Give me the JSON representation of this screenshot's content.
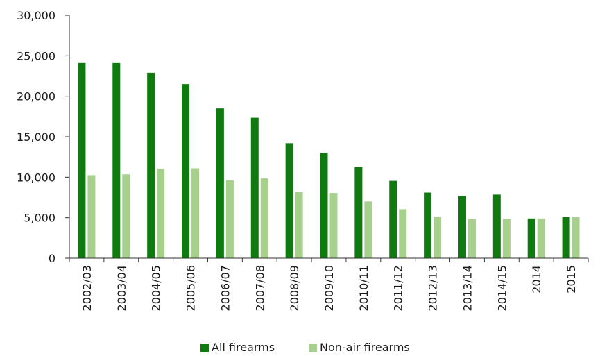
{
  "chart_data": {
    "type": "bar",
    "categories": [
      "2002/03",
      "2003/04",
      "2004/05",
      "2005/06",
      "2006/07",
      "2007/08",
      "2008/09",
      "2009/10",
      "2010/11",
      "2011/12",
      "2012/13",
      "2013/14",
      "2014/15",
      "2014",
      "2015"
    ],
    "series": [
      {
        "name": "All firearms",
        "color": "#0f7a0f",
        "values": [
          24100,
          24100,
          22900,
          21500,
          18500,
          17350,
          14200,
          13000,
          11300,
          9550,
          8100,
          7700,
          7850,
          4900,
          5100
        ]
      },
      {
        "name": "Non-air firearms",
        "color": "#a8d08d",
        "values": [
          10250,
          10350,
          11050,
          11100,
          9600,
          9850,
          8150,
          8050,
          7000,
          6050,
          5150,
          4850,
          4850,
          4900,
          5100
        ]
      }
    ],
    "yticks": [
      "0",
      "5,000",
      "10,000",
      "15,000",
      "20,000",
      "25,000",
      "30,000"
    ],
    "ylim": [
      0,
      30000
    ],
    "grid": false,
    "legend": "bottom"
  }
}
